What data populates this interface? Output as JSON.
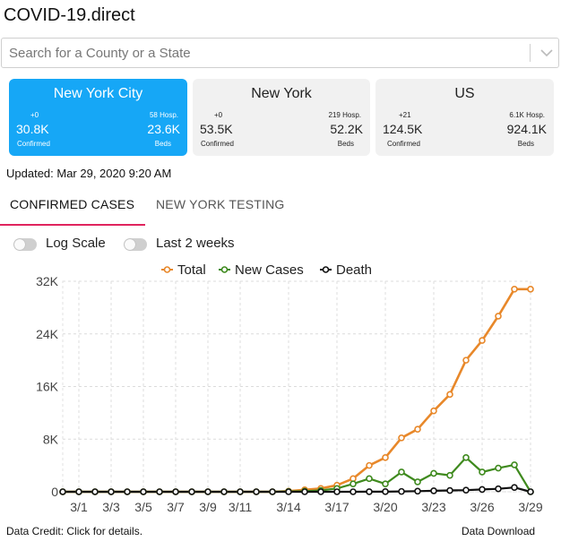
{
  "app": {
    "title": "COVID-19.direct"
  },
  "search": {
    "placeholder": "Search for a County or a State"
  },
  "cards": [
    {
      "name": "New York City",
      "confirmed_delta": "+0",
      "confirmed_value": "30.8K",
      "confirmed_label": "Confirmed",
      "hosp_label": "58 Hosp.",
      "beds_value": "23.6K",
      "beds_label": "Beds",
      "selected": true
    },
    {
      "name": "New York",
      "confirmed_delta": "+0",
      "confirmed_value": "53.5K",
      "confirmed_label": "Confirmed",
      "hosp_label": "219 Hosp.",
      "beds_value": "52.2K",
      "beds_label": "Beds",
      "selected": false
    },
    {
      "name": "US",
      "confirmed_delta": "+21",
      "confirmed_value": "124.5K",
      "confirmed_label": "Confirmed",
      "hosp_label": "6.1K Hosp.",
      "beds_value": "924.1K",
      "beds_label": "Beds",
      "selected": false
    }
  ],
  "updated": "Updated: Mar 29, 2020 9:20 AM",
  "tabs": [
    {
      "label": "CONFIRMED CASES",
      "active": true
    },
    {
      "label": "NEW YORK TESTING",
      "active": false
    }
  ],
  "toggles": {
    "log_scale": {
      "label": "Log Scale",
      "on": false
    },
    "last_2_weeks": {
      "label": "Last 2 weeks",
      "on": false
    }
  },
  "colors": {
    "accent": "#16a7f6",
    "tab_underline": "#e0245e",
    "total": "#e8882a",
    "new_cases": "#3f8a1e",
    "death": "#111111"
  },
  "chart_data": {
    "type": "line",
    "title": "",
    "xlabel": "",
    "ylabel": "",
    "x_tick_labels": [
      "3/1",
      "3/3",
      "3/5",
      "3/7",
      "3/9",
      "3/11",
      "3/14",
      "3/17",
      "3/20",
      "3/23",
      "3/26",
      "3/29"
    ],
    "y_tick_labels": [
      "32K",
      "24K",
      "16K",
      "8K",
      "0"
    ],
    "ylim": [
      0,
      32000
    ],
    "legend": [
      "Total",
      "New Cases",
      "Death"
    ],
    "legend_position": "top",
    "grid": true,
    "x": [
      "2/29",
      "3/1",
      "3/2",
      "3/3",
      "3/4",
      "3/5",
      "3/6",
      "3/7",
      "3/8",
      "3/9",
      "3/10",
      "3/11",
      "3/12",
      "3/13",
      "3/14",
      "3/15",
      "3/16",
      "3/17",
      "3/18",
      "3/19",
      "3/20",
      "3/21",
      "3/22",
      "3/23",
      "3/24",
      "3/25",
      "3/26",
      "3/27",
      "3/28",
      "3/29"
    ],
    "series": [
      {
        "name": "Total",
        "values": [
          0,
          0,
          0,
          0,
          0,
          0,
          0,
          0,
          0,
          0,
          0,
          0,
          0,
          0,
          100,
          300,
          500,
          1000,
          2000,
          4000,
          5200,
          8200,
          9500,
          12300,
          14800,
          20000,
          23000,
          26700,
          30800,
          30800
        ]
      },
      {
        "name": "New Cases",
        "values": [
          0,
          0,
          0,
          0,
          0,
          0,
          0,
          0,
          0,
          0,
          0,
          0,
          0,
          0,
          50,
          100,
          200,
          500,
          1200,
          2000,
          1200,
          3000,
          1500,
          2800,
          2500,
          5200,
          3000,
          3600,
          4100,
          0
        ]
      },
      {
        "name": "Death",
        "values": [
          0,
          0,
          0,
          0,
          0,
          0,
          0,
          0,
          0,
          0,
          0,
          0,
          0,
          0,
          0,
          0,
          0,
          0,
          0,
          10,
          20,
          50,
          100,
          150,
          200,
          250,
          350,
          450,
          650,
          0
        ]
      }
    ]
  },
  "footer": {
    "credit": "Data Credit: Click for details.",
    "download": "Data Download"
  }
}
